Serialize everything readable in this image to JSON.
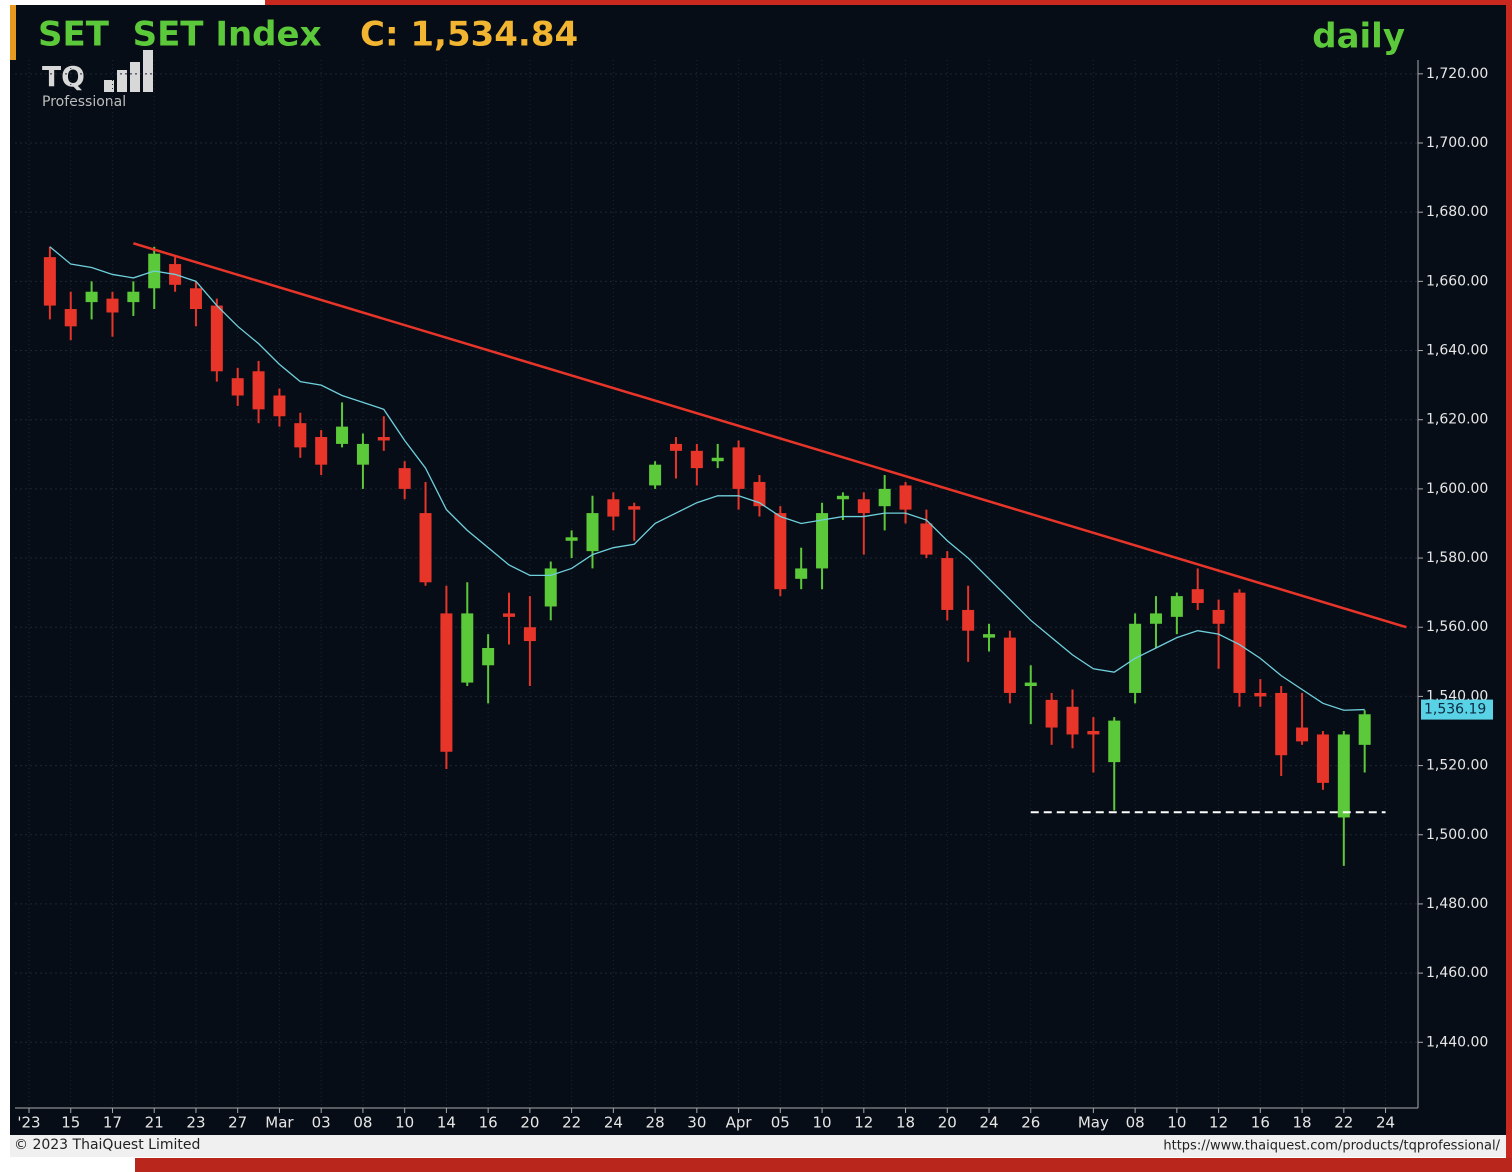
{
  "chart_data": {
    "type": "candlestick",
    "title": "SET  SET Index",
    "title_value": "C: 1,534.84",
    "period": "daily",
    "logo": "TQ",
    "logo_sub": "Professional",
    "footer_left": "© 2023 ThaiQuest Limited",
    "footer_right": "https://www.thaiquest.com/products/tqprofessional/",
    "categories": [
      "'23",
      null,
      "15",
      null,
      "17",
      null,
      "21",
      null,
      "23",
      null,
      "27",
      null,
      "Mar",
      null,
      "03",
      null,
      "08",
      null,
      "10",
      null,
      "14",
      null,
      "16",
      null,
      "20",
      null,
      "22",
      null,
      "24",
      null,
      "28",
      null,
      "30",
      null,
      "Apr",
      null,
      "05",
      null,
      "10",
      null,
      "12",
      null,
      "18",
      null,
      "20",
      null,
      "24",
      null,
      "26",
      null,
      null,
      "May",
      null,
      "08",
      null,
      "10",
      null,
      "12",
      null,
      "16",
      null,
      "18",
      null,
      "22",
      null,
      "24"
    ],
    "open": [
      null,
      1667,
      1652,
      1654,
      1655,
      1654,
      1658,
      1665,
      1658,
      1653,
      1632,
      1634,
      1627,
      1619,
      1615,
      1613,
      1607,
      1615,
      1606,
      1593,
      1564,
      1544,
      1549,
      1564,
      1560,
      1566,
      1585,
      1582,
      1597,
      1595,
      1601,
      1613,
      1611,
      1608,
      1612,
      1602,
      1593,
      1574,
      1577,
      1597,
      1597,
      1595,
      1601,
      1590,
      1580,
      1565,
      1557,
      1557,
      1543,
      1539,
      1537,
      1530,
      1521,
      1541,
      1561,
      1563,
      1571,
      1565,
      1570,
      1541,
      1541,
      1531,
      1529,
      1505,
      1526,
      null
    ],
    "high": [
      null,
      1670,
      1657,
      1660,
      1657,
      1660,
      1670,
      1667,
      1660,
      1655,
      1635,
      1637,
      1629,
      1622,
      1617,
      1625,
      1616,
      1621,
      1608,
      1602,
      1572,
      1573,
      1558,
      1570,
      1569,
      1579,
      1588,
      1598,
      1599,
      1596,
      1608,
      1615,
      1613,
      1613,
      1614,
      1604,
      1595,
      1583,
      1596,
      1599,
      1599,
      1604,
      1602,
      1594,
      1582,
      1572,
      1561,
      1559,
      1549,
      1541,
      1542,
      1534,
      1534,
      1564,
      1569,
      1570,
      1577,
      1568,
      1571,
      1545,
      1543,
      1541,
      1530,
      1530,
      1536,
      null
    ],
    "low": [
      null,
      1649,
      1643,
      1649,
      1644,
      1650,
      1652,
      1657,
      1647,
      1631,
      1624,
      1619,
      1618,
      1609,
      1604,
      1612,
      1600,
      1611,
      1597,
      1572,
      1519,
      1543,
      1538,
      1555,
      1543,
      1562,
      1580,
      1577,
      1588,
      1585,
      1600,
      1603,
      1601,
      1606,
      1594,
      1592,
      1569,
      1571,
      1571,
      1591,
      1581,
      1588,
      1590,
      1580,
      1562,
      1550,
      1553,
      1538,
      1532,
      1526,
      1525,
      1518,
      1507,
      1538,
      1554,
      1558,
      1565,
      1548,
      1537,
      1537,
      1517,
      1526,
      1513,
      1491,
      1518,
      null
    ],
    "close": [
      null,
      1653,
      1647,
      1657,
      1651,
      1657,
      1668,
      1659,
      1652,
      1634,
      1627,
      1623,
      1621,
      1612,
      1607,
      1618,
      1613,
      1614,
      1600,
      1573,
      1524,
      1564,
      1554,
      1563,
      1556,
      1577,
      1586,
      1593,
      1592,
      1594,
      1607,
      1611,
      1606,
      1609,
      1600,
      1595,
      1571,
      1577,
      1593,
      1598,
      1593,
      1600,
      1594,
      1581,
      1565,
      1559,
      1558,
      1541,
      1544,
      1531,
      1529,
      1529,
      1533,
      1561,
      1564,
      1569,
      1567,
      1561,
      1541,
      1540,
      1523,
      1527,
      1515,
      1529,
      1534.84,
      null
    ],
    "up_color": "#5cc93a",
    "down_color": "#e8352a",
    "ma": {
      "color": "#6fd0dc",
      "values": [
        null,
        1670,
        1665,
        1664,
        1662,
        1661,
        1663,
        1662,
        1660,
        1653,
        1647,
        1642,
        1636,
        1631,
        1630,
        1627,
        1625,
        1623,
        1614,
        1606,
        1594,
        1588,
        1583,
        1578,
        1575,
        1575,
        1577,
        1581,
        1583,
        1584,
        1590,
        1593,
        1596,
        1598,
        1598,
        1596,
        1592,
        1590,
        1591,
        1592,
        1592,
        1593,
        1593,
        1591,
        1585,
        1580,
        1574,
        1568,
        1562,
        1557,
        1552,
        1548,
        1547,
        1551,
        1554,
        1557,
        1559,
        1558,
        1555,
        1551,
        1546,
        1542,
        1538,
        1536,
        1536.19,
        null
      ]
    },
    "last_label": {
      "value": 1536.19,
      "label": "1,536.19"
    },
    "trendline": {
      "color": "#e8352a",
      "x": [
        5,
        66
      ],
      "values": [
        1671,
        1560
      ]
    },
    "support": {
      "color": "#ffffff",
      "x": [
        48,
        65
      ],
      "values": [
        1506.5,
        1506.5
      ]
    },
    "ylim": [
      1421,
      1724
    ],
    "yticks": [
      {
        "value": 1440,
        "label": "1,440.00"
      },
      {
        "value": 1460,
        "label": "1,460.00"
      },
      {
        "value": 1480,
        "label": "1,480.00"
      },
      {
        "value": 1500,
        "label": "1,500.00"
      },
      {
        "value": 1520,
        "label": "1,520.00"
      },
      {
        "value": 1540,
        "label": "1,540.00"
      },
      {
        "value": 1560,
        "label": "1,560.00"
      },
      {
        "value": 1580,
        "label": "1,580.00"
      },
      {
        "value": 1600,
        "label": "1,600.00"
      },
      {
        "value": 1620,
        "label": "1,620.00"
      },
      {
        "value": 1640,
        "label": "1,640.00"
      },
      {
        "value": 1660,
        "label": "1,660.00"
      },
      {
        "value": 1680,
        "label": "1,680.00"
      },
      {
        "value": 1700,
        "label": "1,700.00"
      },
      {
        "value": 1720,
        "label": "1,720.00"
      }
    ],
    "grid": true
  }
}
